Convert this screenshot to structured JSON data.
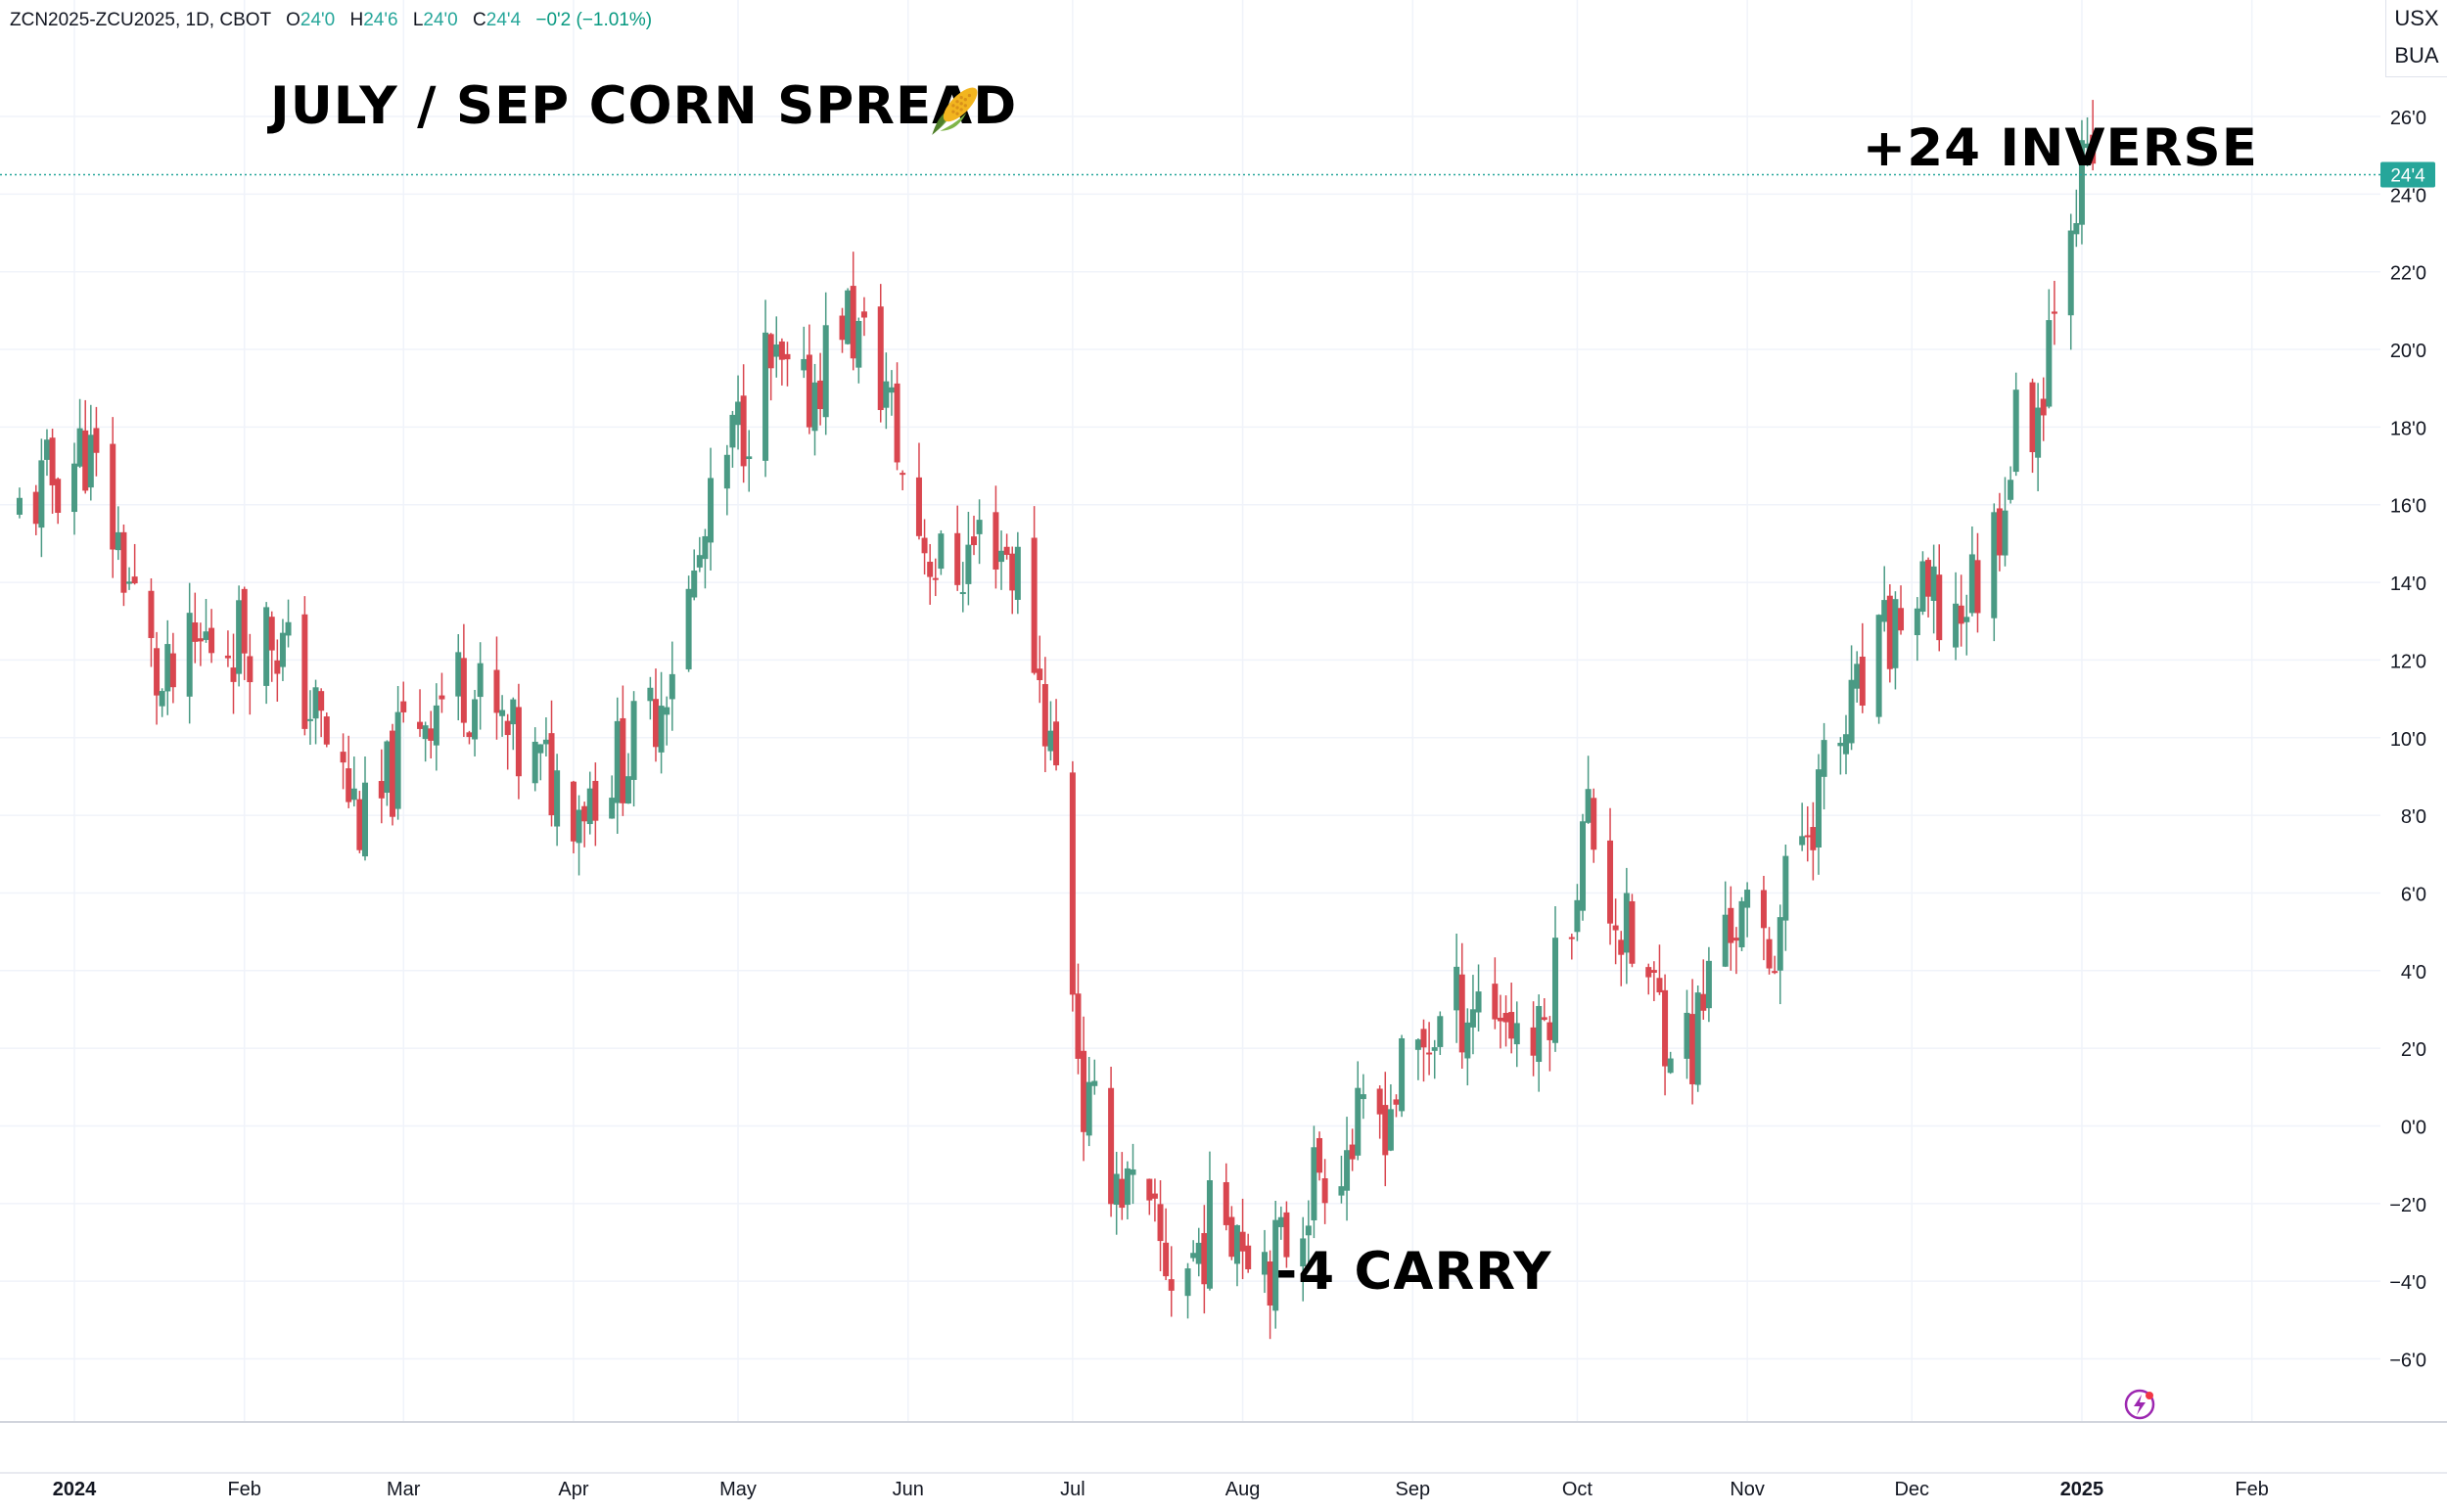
{
  "legend": {
    "symbol": "ZCN2025-ZCU2025, 1D, CBOT",
    "open_label": "O",
    "open": "24'0",
    "high_label": "H",
    "high": "24'6",
    "low_label": "L",
    "low": "24'0",
    "close_label": "C",
    "close": "24'4",
    "change": "−0'2 (−1.01%)"
  },
  "title": "JULY / SEP CORN SPREAD",
  "units": {
    "line1": "USX",
    "line2": "BUA"
  },
  "icons": {
    "title_icon": "corn-icon",
    "bottom_icon": "lightning-bolt-icon"
  },
  "colors": {
    "up": "#4a9a84",
    "down": "#d9464f",
    "grid": "#f0f3fa",
    "last_price": "#26a69a"
  },
  "chart_data": {
    "type": "candlestick",
    "title": "JULY / SEP CORN SPREAD",
    "x_range": [
      "2024-01-01",
      "2025-03-10"
    ],
    "ylim": [
      -7.6,
      29
    ],
    "grid": true,
    "y_ticks": [
      {
        "v": 26,
        "label": "26'0"
      },
      {
        "v": 24,
        "label": "24'0"
      },
      {
        "v": 22,
        "label": "22'0"
      },
      {
        "v": 20,
        "label": "20'0"
      },
      {
        "v": 18,
        "label": "18'0"
      },
      {
        "v": 16,
        "label": "16'0"
      },
      {
        "v": 14,
        "label": "14'0"
      },
      {
        "v": 12,
        "label": "12'0"
      },
      {
        "v": 10,
        "label": "10'0"
      },
      {
        "v": 8,
        "label": "8'0"
      },
      {
        "v": 6,
        "label": "6'0"
      },
      {
        "v": 4,
        "label": "4'0"
      },
      {
        "v": 2,
        "label": "2'0"
      },
      {
        "v": 0,
        "label": "0'0"
      },
      {
        "v": -2,
        "label": "−2'0"
      },
      {
        "v": -4,
        "label": "−4'0"
      },
      {
        "v": -6,
        "label": "−6'0"
      }
    ],
    "x_ticks": [
      {
        "d": "2024-01-01",
        "label": "2024",
        "bold": true
      },
      {
        "d": "2024-02-01",
        "label": "Feb"
      },
      {
        "d": "2024-03-01",
        "label": "Mar"
      },
      {
        "d": "2024-04-01",
        "label": "Apr"
      },
      {
        "d": "2024-05-01",
        "label": "May"
      },
      {
        "d": "2024-06-01",
        "label": "Jun"
      },
      {
        "d": "2024-07-01",
        "label": "Jul"
      },
      {
        "d": "2024-08-01",
        "label": "Aug"
      },
      {
        "d": "2024-09-01",
        "label": "Sep"
      },
      {
        "d": "2024-10-01",
        "label": "Oct"
      },
      {
        "d": "2024-11-01",
        "label": "Nov"
      },
      {
        "d": "2024-12-01",
        "label": "Dec"
      },
      {
        "d": "2025-01-01",
        "label": "2025",
        "bold": true
      },
      {
        "d": "2025-02-01",
        "label": "Feb"
      }
    ],
    "last_price": {
      "value": 24.5,
      "label": "24'4"
    },
    "annotations": [
      {
        "text": "+24 INVERSE",
        "date": "2024-11-22",
        "value": 25.1
      },
      {
        "text": "-4 CARRY",
        "date": "2024-08-07",
        "value": -3.85
      }
    ],
    "anchors": [
      [
        "2023-12-20",
        15.5
      ],
      [
        "2024-01-03",
        17.5
      ],
      [
        "2024-01-10",
        14.5
      ],
      [
        "2024-01-17",
        11.0
      ],
      [
        "2024-01-25",
        12.5
      ],
      [
        "2024-02-06",
        12.8
      ],
      [
        "2024-02-14",
        10.5
      ],
      [
        "2024-02-24",
        7.3
      ],
      [
        "2024-03-02",
        10.5
      ],
      [
        "2024-03-12",
        11.5
      ],
      [
        "2024-03-22",
        9.5
      ],
      [
        "2024-04-02",
        8.5
      ],
      [
        "2024-04-14",
        10.0
      ],
      [
        "2024-04-22",
        13.5
      ],
      [
        "2024-04-30",
        17.5
      ],
      [
        "2024-05-06",
        19.5
      ],
      [
        "2024-05-13",
        18.5
      ],
      [
        "2024-05-20",
        21.0
      ],
      [
        "2024-05-28",
        19.0
      ],
      [
        "2024-06-01",
        16.0
      ],
      [
        "2024-06-08",
        14.0
      ],
      [
        "2024-06-16",
        15.5
      ],
      [
        "2024-06-22",
        14.0
      ],
      [
        "2024-06-28",
        9.0
      ],
      [
        "2024-07-03",
        0.5
      ],
      [
        "2024-07-12",
        -2.0
      ],
      [
        "2024-07-20",
        -4.0
      ],
      [
        "2024-07-29",
        -2.0
      ],
      [
        "2024-08-07",
        -3.5
      ],
      [
        "2024-08-15",
        -1.0
      ],
      [
        "2024-08-25",
        0.0
      ],
      [
        "2024-09-05",
        2.5
      ],
      [
        "2024-09-14",
        3.5
      ],
      [
        "2024-09-24",
        2.0
      ],
      [
        "2024-10-03",
        8.0
      ],
      [
        "2024-10-09",
        5.0
      ],
      [
        "2024-10-16",
        3.0
      ],
      [
        "2024-10-22",
        2.0
      ],
      [
        "2024-10-28",
        5.5
      ],
      [
        "2024-11-05",
        4.5
      ],
      [
        "2024-11-12",
        8.0
      ],
      [
        "2024-11-20",
        10.5
      ],
      [
        "2024-11-30",
        13.5
      ],
      [
        "2024-12-08",
        13.0
      ],
      [
        "2024-12-15",
        14.5
      ],
      [
        "2024-12-20",
        18.0
      ],
      [
        "2024-12-24",
        18.5
      ],
      [
        "2024-12-29",
        24.0
      ],
      [
        "2025-01-03",
        24.6
      ]
    ]
  }
}
